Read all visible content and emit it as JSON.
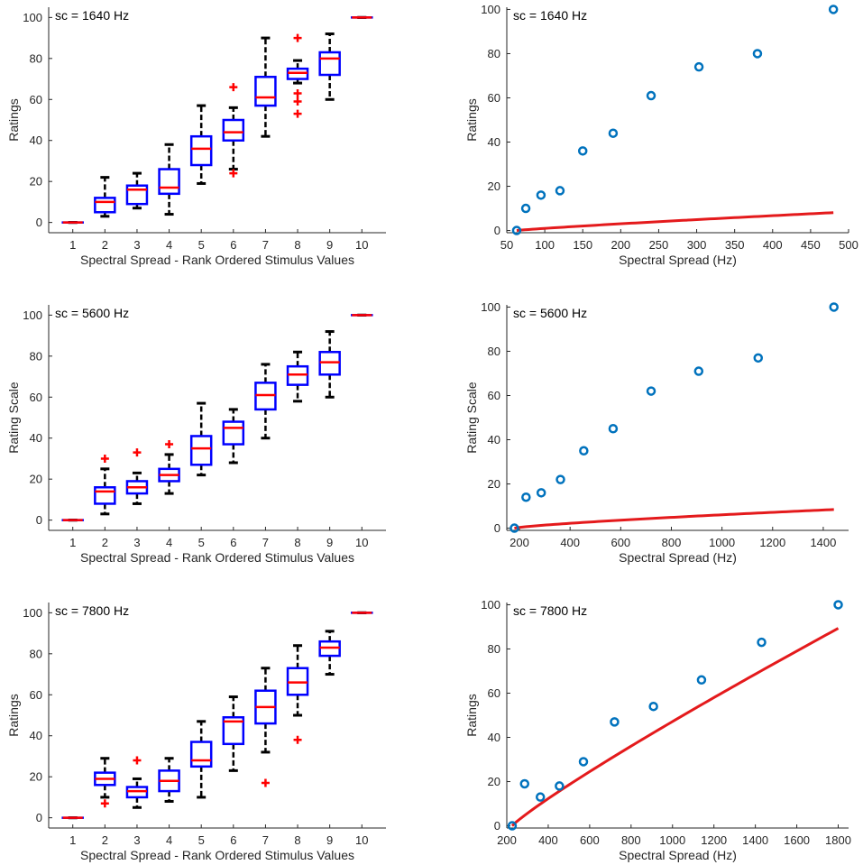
{
  "colors": {
    "box": "#0000ff",
    "median": "#ff0000",
    "whisker": "#000000",
    "outlier": "#ff0000",
    "point": "#0072bd",
    "fit": "#e41a1c",
    "axis": "#262626"
  },
  "chart_data": [
    {
      "type": "box",
      "annotation": "sc = 1640 Hz",
      "xlabel": "Spectral Spread - Rank Ordered Stimulus Values",
      "ylabel": "Ratings",
      "categories": [
        "1",
        "2",
        "3",
        "4",
        "5",
        "6",
        "7",
        "8",
        "9",
        "10"
      ],
      "ylim": [
        -5,
        105
      ],
      "yticks": [
        0,
        20,
        40,
        60,
        80,
        100
      ],
      "boxes": [
        {
          "q1": 0,
          "median": 0,
          "q3": 0,
          "wlo": 0,
          "whi": 0,
          "outliers": []
        },
        {
          "q1": 5,
          "median": 10,
          "q3": 12,
          "wlo": 3,
          "whi": 22,
          "outliers": []
        },
        {
          "q1": 9,
          "median": 16,
          "q3": 18,
          "wlo": 7,
          "whi": 24,
          "outliers": []
        },
        {
          "q1": 14,
          "median": 17,
          "q3": 26,
          "wlo": 4,
          "whi": 38,
          "outliers": []
        },
        {
          "q1": 28,
          "median": 36,
          "q3": 42,
          "wlo": 19,
          "whi": 57,
          "outliers": []
        },
        {
          "q1": 40,
          "median": 44,
          "q3": 50,
          "wlo": 26,
          "whi": 56,
          "outliers": [
            24,
            66
          ]
        },
        {
          "q1": 57,
          "median": 61,
          "q3": 71,
          "wlo": 42,
          "whi": 90,
          "outliers": []
        },
        {
          "q1": 70,
          "median": 73,
          "q3": 75,
          "wlo": 68,
          "whi": 79,
          "outliers": [
            53,
            59,
            63,
            90
          ]
        },
        {
          "q1": 72,
          "median": 80,
          "q3": 83,
          "wlo": 60,
          "whi": 92,
          "outliers": []
        },
        {
          "q1": 100,
          "median": 100,
          "q3": 100,
          "wlo": 100,
          "whi": 100,
          "outliers": []
        }
      ]
    },
    {
      "type": "scatter",
      "annotation": "sc = 1640 Hz",
      "xlabel": "Spectral Spread (Hz)",
      "ylabel": "Ratings",
      "xlim": [
        50,
        500
      ],
      "ylim": [
        -1,
        101
      ],
      "xticks": [
        50,
        100,
        150,
        200,
        250,
        300,
        350,
        400,
        450,
        500
      ],
      "xtick_labels": [
        "50",
        "100",
        "150",
        "200",
        "250",
        "300",
        "350",
        "400",
        "450",
        "500"
      ],
      "yticks": [
        0,
        20,
        40,
        60,
        80,
        100
      ],
      "x": [
        63,
        75,
        95,
        120,
        150,
        190,
        240,
        303,
        380,
        480
      ],
      "y": [
        0,
        10,
        16,
        18,
        36,
        44,
        61,
        74,
        80,
        100
      ],
      "fit": {
        "x0": 63,
        "x1": 480,
        "a": 0.04,
        "p": 0.88
      }
    },
    {
      "type": "box",
      "annotation": "sc = 5600 Hz",
      "xlabel": "Spectral Spread - Rank Ordered Stimulus Values",
      "ylabel": "Rating Scale",
      "categories": [
        "1",
        "2",
        "3",
        "4",
        "5",
        "6",
        "7",
        "8",
        "9",
        "10"
      ],
      "ylim": [
        -5,
        105
      ],
      "yticks": [
        0,
        20,
        40,
        60,
        80,
        100
      ],
      "boxes": [
        {
          "q1": 0,
          "median": 0,
          "q3": 0,
          "wlo": 0,
          "whi": 0,
          "outliers": []
        },
        {
          "q1": 8,
          "median": 14,
          "q3": 16,
          "wlo": 3,
          "whi": 25,
          "outliers": [
            30
          ]
        },
        {
          "q1": 13,
          "median": 16,
          "q3": 19,
          "wlo": 8,
          "whi": 23,
          "outliers": [
            33
          ]
        },
        {
          "q1": 19,
          "median": 22,
          "q3": 25,
          "wlo": 13,
          "whi": 32,
          "outliers": [
            37
          ]
        },
        {
          "q1": 27,
          "median": 35,
          "q3": 41,
          "wlo": 22,
          "whi": 57,
          "outliers": []
        },
        {
          "q1": 37,
          "median": 45,
          "q3": 48,
          "wlo": 28,
          "whi": 54,
          "outliers": []
        },
        {
          "q1": 54,
          "median": 61,
          "q3": 67,
          "wlo": 40,
          "whi": 76,
          "outliers": []
        },
        {
          "q1": 66,
          "median": 71,
          "q3": 75,
          "wlo": 58,
          "whi": 82,
          "outliers": []
        },
        {
          "q1": 71,
          "median": 77,
          "q3": 82,
          "wlo": 60,
          "whi": 92,
          "outliers": []
        },
        {
          "q1": 100,
          "median": 100,
          "q3": 100,
          "wlo": 100,
          "whi": 100,
          "outliers": []
        }
      ]
    },
    {
      "type": "scatter",
      "annotation": "sc = 5600 Hz",
      "xlabel": "Spectral Spread (Hz)",
      "ylabel": "Rating Scale",
      "xlim": [
        150,
        1500
      ],
      "ylim": [
        -1,
        101
      ],
      "xticks": [
        200,
        400,
        600,
        800,
        1000,
        1200,
        1400
      ],
      "xtick_labels": [
        "200",
        "400",
        "600",
        "800",
        "1000",
        "1200",
        "1400"
      ],
      "yticks": [
        0,
        20,
        40,
        60,
        80,
        100
      ],
      "x": [
        180,
        226,
        286,
        362,
        454,
        570,
        720,
        908,
        1143,
        1442
      ],
      "y": [
        0,
        14,
        16,
        22,
        35,
        45,
        62,
        71,
        77,
        100
      ],
      "fit": {
        "x0": 180,
        "x1": 1442,
        "a": 0.0345,
        "p": 0.77
      }
    },
    {
      "type": "box",
      "annotation": "sc = 7800 Hz",
      "xlabel": "Spectral Spread - Rank Ordered Stimulus Values",
      "ylabel": "Ratings",
      "categories": [
        "1",
        "2",
        "3",
        "4",
        "5",
        "6",
        "7",
        "8",
        "9",
        "10"
      ],
      "ylim": [
        -5,
        105
      ],
      "yticks": [
        0,
        20,
        40,
        60,
        80,
        100
      ],
      "boxes": [
        {
          "q1": 0,
          "median": 0,
          "q3": 0,
          "wlo": 0,
          "whi": 0,
          "outliers": []
        },
        {
          "q1": 16,
          "median": 19,
          "q3": 22,
          "wlo": 10,
          "whi": 29,
          "outliers": [
            7
          ]
        },
        {
          "q1": 10,
          "median": 13,
          "q3": 15,
          "wlo": 5,
          "whi": 19,
          "outliers": [
            28
          ]
        },
        {
          "q1": 13,
          "median": 18,
          "q3": 23,
          "wlo": 8,
          "whi": 29,
          "outliers": []
        },
        {
          "q1": 25,
          "median": 28,
          "q3": 37,
          "wlo": 10,
          "whi": 47,
          "outliers": []
        },
        {
          "q1": 36,
          "median": 47,
          "q3": 49,
          "wlo": 23,
          "whi": 59,
          "outliers": []
        },
        {
          "q1": 46,
          "median": 54,
          "q3": 62,
          "wlo": 32,
          "whi": 73,
          "outliers": [
            17
          ]
        },
        {
          "q1": 60,
          "median": 66,
          "q3": 73,
          "wlo": 50,
          "whi": 84,
          "outliers": [
            38
          ]
        },
        {
          "q1": 79,
          "median": 83,
          "q3": 86,
          "wlo": 70,
          "whi": 91,
          "outliers": []
        },
        {
          "q1": 100,
          "median": 100,
          "q3": 100,
          "wlo": 100,
          "whi": 100,
          "outliers": []
        }
      ]
    },
    {
      "type": "scatter",
      "annotation": "sc = 7800 Hz",
      "xlabel": "Spectral Spread (Hz)",
      "ylabel": "Ratings",
      "xlim": [
        200,
        1850
      ],
      "ylim": [
        -1,
        101
      ],
      "xticks": [
        200,
        400,
        600,
        800,
        1000,
        1200,
        1400,
        1600,
        1800
      ],
      "xtick_labels": [
        "200",
        "400",
        "600",
        "800",
        "1000",
        "1200",
        "1400",
        "1600",
        "1800"
      ],
      "yticks": [
        0,
        20,
        40,
        60,
        80,
        100
      ],
      "x": [
        226,
        286,
        362,
        454,
        570,
        720,
        908,
        1140,
        1430,
        1800
      ],
      "y": [
        0,
        19,
        13,
        18,
        29,
        47,
        54,
        66,
        83,
        100
      ],
      "fit": {
        "x0": 226,
        "x1": 1800,
        "a": 0.1185,
        "p": 0.9
      }
    }
  ]
}
